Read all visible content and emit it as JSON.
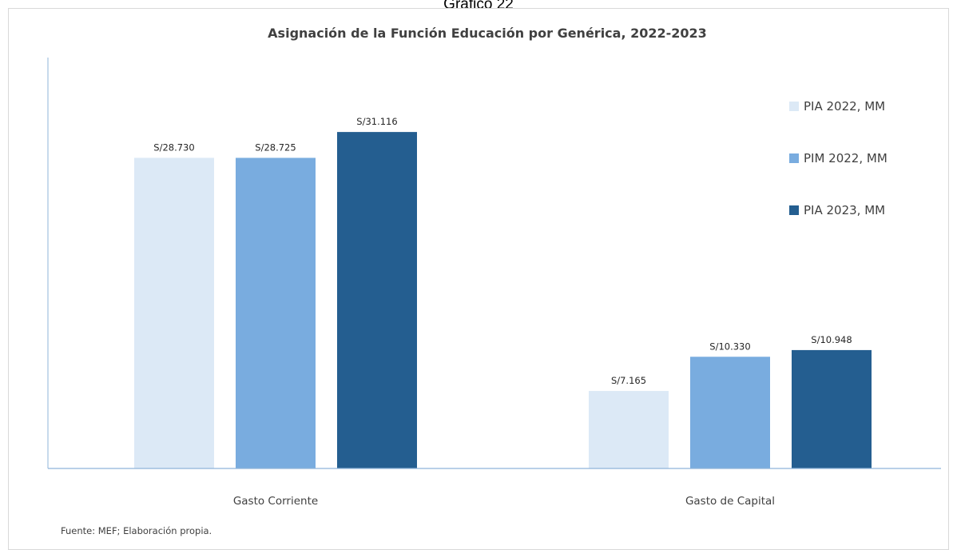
{
  "caption": "Gráfico 22",
  "source_note": "Fuente: MEF; Elaboración propia.",
  "chart_data": {
    "type": "bar",
    "title": "Asignación de la Función Educación por Genérica,  2022-2023",
    "categories": [
      "Gasto Corriente",
      "Gasto de Capital"
    ],
    "series": [
      {
        "name": "PIA 2022, MM",
        "color": "#dce9f6",
        "values": [
          28.73,
          7.165
        ],
        "labels": [
          "S/28.730",
          "S/7.165"
        ]
      },
      {
        "name": "PIM 2022, MM",
        "color": "#79acdf",
        "values": [
          28.725,
          10.33
        ],
        "labels": [
          "S/28.725",
          "S/10.330"
        ]
      },
      {
        "name": "PIA 2023, MM",
        "color": "#245e90",
        "values": [
          31.116,
          10.948
        ],
        "labels": [
          "S/31.116",
          "S/10.948"
        ]
      }
    ],
    "ylim": [
      0,
      38
    ],
    "grid": false,
    "legend_position": "right",
    "axis_color": "#8fb4d9"
  }
}
